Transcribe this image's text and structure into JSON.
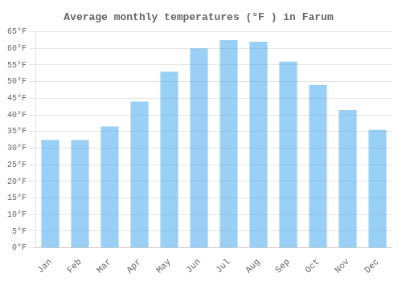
{
  "chart_data": {
    "type": "bar",
    "title": "Average monthly temperatures (°F ) in Farum",
    "categories": [
      "Jan",
      "Feb",
      "Mar",
      "Apr",
      "May",
      "Jun",
      "Jul",
      "Aug",
      "Sep",
      "Oct",
      "Nov",
      "Dec"
    ],
    "values": [
      32.5,
      32.5,
      36.5,
      44,
      53,
      60,
      62.5,
      62,
      56,
      49,
      41.5,
      35.5
    ],
    "ylim": [
      0,
      65
    ],
    "yticks": [
      {
        "value": 0,
        "label": "0°F"
      },
      {
        "value": 5,
        "label": "5°F"
      },
      {
        "value": 10,
        "label": "10°F"
      },
      {
        "value": 15,
        "label": "15°F"
      },
      {
        "value": 20,
        "label": "20°F"
      },
      {
        "value": 25,
        "label": "25°F"
      },
      {
        "value": 30,
        "label": "30°F"
      },
      {
        "value": 35,
        "label": "35°F"
      },
      {
        "value": 40,
        "label": "40°F"
      },
      {
        "value": 45,
        "label": "45°F"
      },
      {
        "value": 50,
        "label": "50°F"
      },
      {
        "value": 55,
        "label": "55°F"
      },
      {
        "value": 60,
        "label": "60°F"
      },
      {
        "value": 65,
        "label": "65°F"
      }
    ],
    "grid": true
  }
}
